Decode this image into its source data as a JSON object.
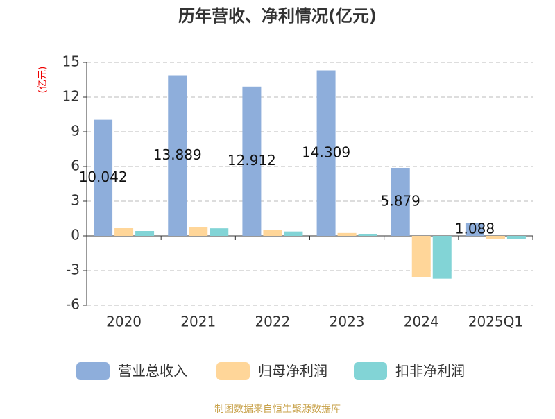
{
  "chart_data": {
    "type": "bar",
    "title": "历年营收、净利情况(亿元)",
    "y_label": "(亿元)",
    "categories": [
      "2020",
      "2021",
      "2022",
      "2023",
      "2024",
      "2025Q1"
    ],
    "series": [
      {
        "name": "营业总收入",
        "color": "#8eaedb",
        "values": [
          10.042,
          13.889,
          12.912,
          14.309,
          5.879,
          1.088
        ],
        "show_labels": true
      },
      {
        "name": "归母净利润",
        "color": "#ffd699",
        "values": [
          0.66,
          0.78,
          0.5,
          0.25,
          -3.6,
          -0.25
        ],
        "show_labels": false
      },
      {
        "name": "扣非净利润",
        "color": "#82d4d6",
        "values": [
          0.42,
          0.65,
          0.38,
          0.18,
          -3.7,
          -0.25
        ],
        "show_labels": false
      }
    ],
    "ylim": [
      -6,
      15
    ],
    "yticks": [
      -6,
      -3,
      0,
      3,
      6,
      9,
      12,
      15
    ],
    "grid": true,
    "legend": "bottom",
    "source": "制图数据来自恒生聚源数据库"
  }
}
